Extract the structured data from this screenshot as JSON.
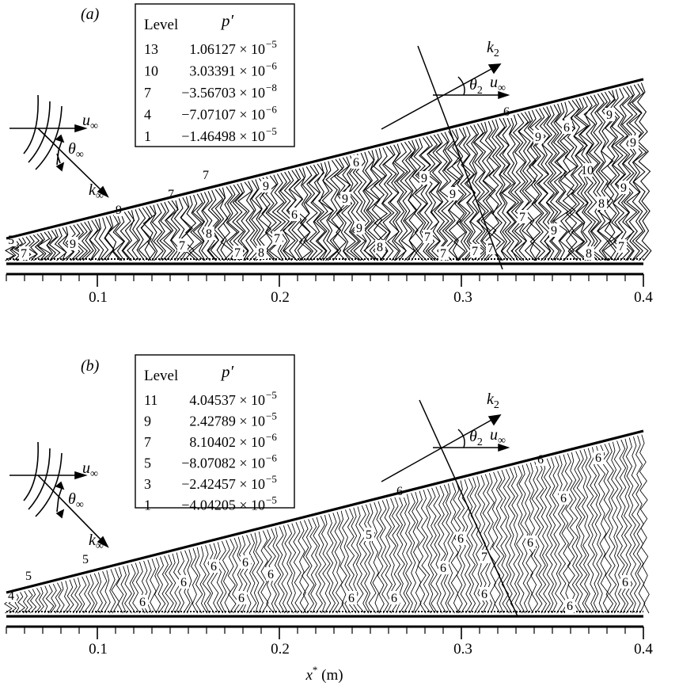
{
  "chart_data": [
    {
      "type": "contour",
      "panel_label": "(a)",
      "legend": {
        "header_level": "Level",
        "header_value": "p′",
        "entries": [
          {
            "level": "13",
            "mantissa": "1.06127",
            "exponent": "−5"
          },
          {
            "level": "10",
            "mantissa": "3.03391",
            "exponent": "−6"
          },
          {
            "level": "7",
            "mantissa": "−3.56703",
            "exponent": "−8"
          },
          {
            "level": "4",
            "mantissa": "−7.07107",
            "exponent": "−6"
          },
          {
            "level": "1",
            "mantissa": "−1.46498",
            "exponent": "−5"
          }
        ]
      },
      "vectors": {
        "u_inf": "u",
        "k_inf": "k",
        "theta_inf": "θ",
        "k2": "k",
        "theta2": "θ",
        "u_inf2": "u",
        "inf_sub": "∞",
        "two_sub": "2"
      },
      "xlim": [
        0.05,
        0.4
      ],
      "xticks": [
        "0.1",
        "0.2",
        "0.3",
        "0.4"
      ],
      "contour_labels": [
        "5",
        "7",
        "9",
        "9",
        "7",
        "8",
        "7",
        "7",
        "7",
        "6",
        "9",
        "9",
        "8",
        "9",
        "7",
        "7",
        "6",
        "9",
        "9",
        "6",
        "10",
        "7",
        "9",
        "7",
        "8",
        "8",
        "7",
        "7",
        "8",
        "9",
        "9",
        "6",
        "9",
        "7",
        "9"
      ]
    },
    {
      "type": "contour",
      "panel_label": "(b)",
      "legend": {
        "header_level": "Level",
        "header_value": "p′",
        "entries": [
          {
            "level": "11",
            "mantissa": "4.04537",
            "exponent": "−5"
          },
          {
            "level": "9",
            "mantissa": "2.42789",
            "exponent": "−5"
          },
          {
            "level": "7",
            "mantissa": "8.10402",
            "exponent": "−6"
          },
          {
            "level": "5",
            "mantissa": "−8.07082",
            "exponent": "−6"
          },
          {
            "level": "3",
            "mantissa": "−2.42457",
            "exponent": "−5"
          },
          {
            "level": "1",
            "mantissa": "−4.04205",
            "exponent": "−5"
          }
        ]
      },
      "vectors": {
        "u_inf": "u",
        "k_inf": "k",
        "theta_inf": "θ",
        "k2": "k",
        "theta2": "θ",
        "u_inf2": "u",
        "inf_sub": "∞",
        "two_sub": "2"
      },
      "xlim": [
        0.05,
        0.4
      ],
      "xticks": [
        "0.1",
        "0.2",
        "0.3",
        "0.4"
      ],
      "xlabel_main": "x",
      "xlabel_sup": "*",
      "xlabel_unit": "(m)",
      "contour_labels": [
        "4",
        "5",
        "5",
        "6",
        "6",
        "6",
        "6",
        "6",
        "5",
        "6",
        "6",
        "6",
        "6",
        "6",
        "6",
        "7",
        "6",
        "6",
        "6",
        "6",
        "6",
        "6",
        "6"
      ]
    }
  ]
}
